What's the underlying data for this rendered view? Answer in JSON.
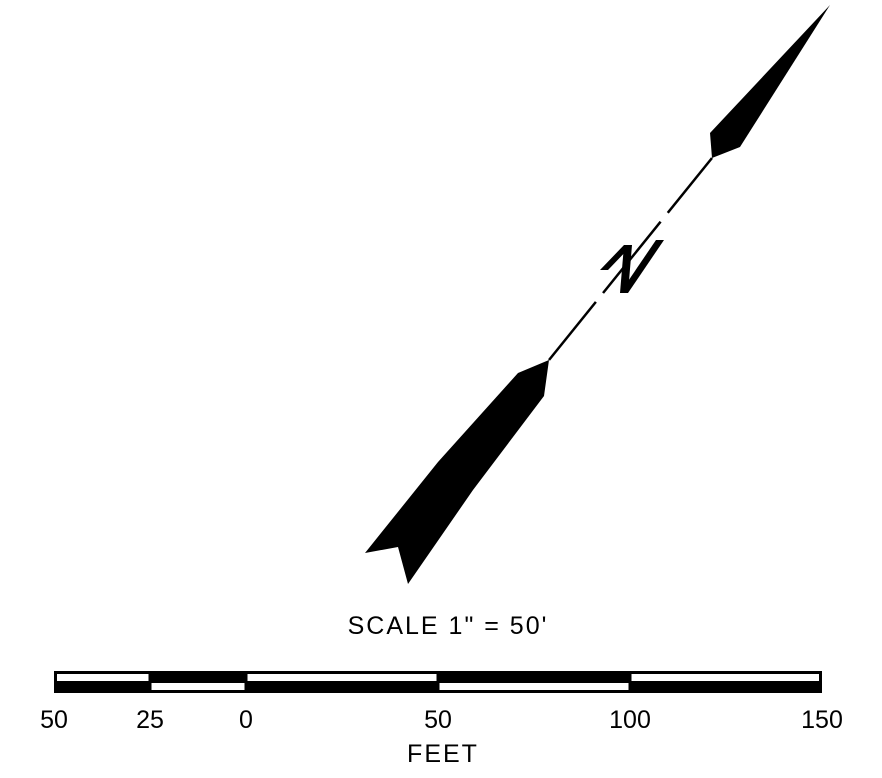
{
  "north_arrow": {
    "letter": "N"
  },
  "scale": {
    "title": "SCALE 1\" = 50'",
    "units": "FEET",
    "ticks": [
      -50,
      -25,
      0,
      50,
      100,
      150
    ],
    "tick_labels": [
      "50",
      "25",
      "0",
      "50",
      "100",
      "150"
    ],
    "segments": [
      {
        "from": -50,
        "to": -25,
        "top": "white",
        "bottom": "black"
      },
      {
        "from": -25,
        "to": 0,
        "top": "black",
        "bottom": "white"
      },
      {
        "from": 0,
        "to": 50,
        "top": "white",
        "bottom": "black"
      },
      {
        "from": 50,
        "to": 100,
        "top": "black",
        "bottom": "white"
      },
      {
        "from": 100,
        "to": 150,
        "top": "white",
        "bottom": "black"
      }
    ]
  }
}
